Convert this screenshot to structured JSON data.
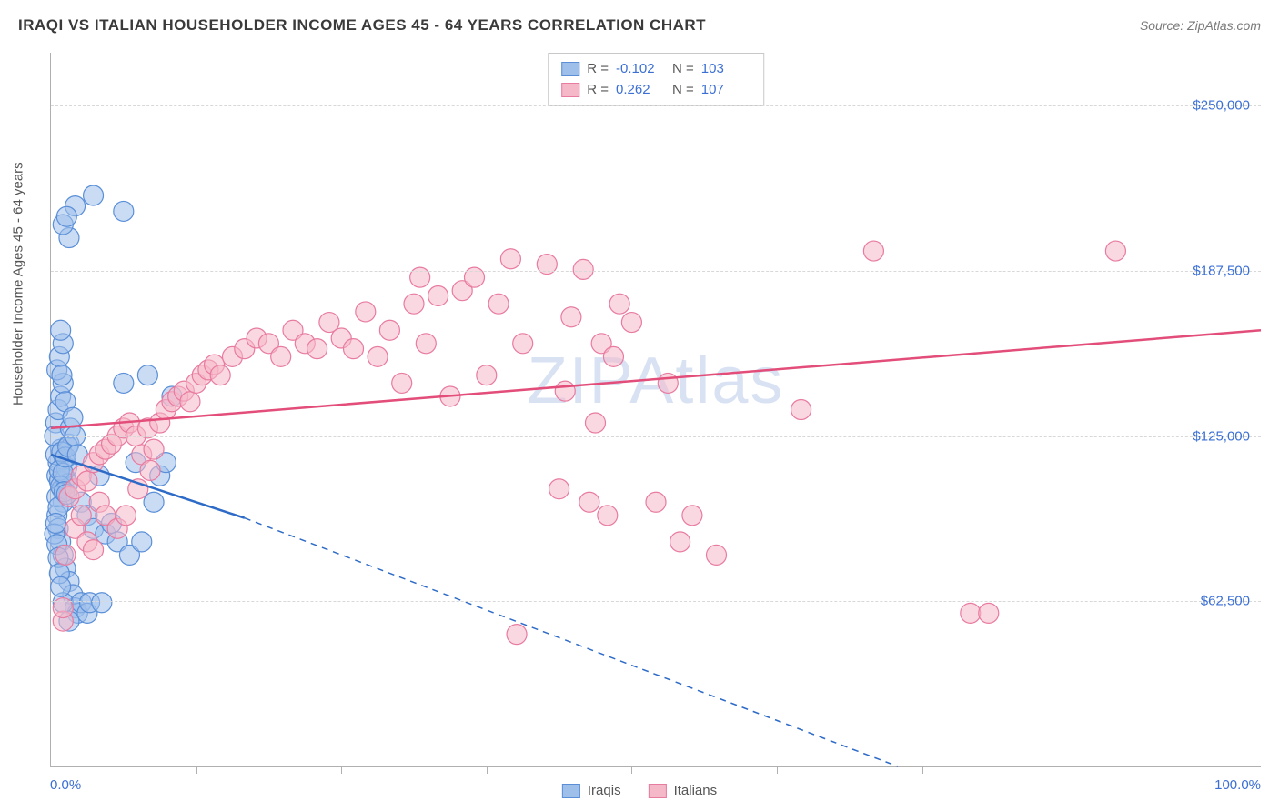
{
  "header": {
    "title": "IRAQI VS ITALIAN HOUSEHOLDER INCOME AGES 45 - 64 YEARS CORRELATION CHART",
    "source": "Source: ZipAtlas.com"
  },
  "chart": {
    "type": "scatter",
    "watermark": "ZIPAtlas",
    "background_color": "#ffffff",
    "grid_color": "#d8d8d8",
    "axis_color": "#b0b0b0",
    "text_color": "#555555",
    "accent_color": "#3b6fd4",
    "title_fontsize": 17,
    "label_fontsize": 15,
    "y_axis": {
      "label": "Householder Income Ages 45 - 64 years",
      "min": 0,
      "max": 270000,
      "ticks": [
        62500,
        125000,
        187500,
        250000
      ],
      "tick_labels": [
        "$62,500",
        "$125,000",
        "$187,500",
        "$250,000"
      ]
    },
    "x_axis": {
      "min": 0,
      "max": 100,
      "left_label": "0.0%",
      "right_label": "100.0%",
      "tick_positions": [
        12,
        24,
        36,
        48,
        60,
        72
      ]
    },
    "series": [
      {
        "name": "Iraqis",
        "color_fill": "#9fbfeb",
        "color_stroke": "#5a8fd8",
        "marker_radius": 11,
        "marker_opacity": 0.55,
        "correlation_R": "-0.102",
        "correlation_N": "103",
        "trend": {
          "x1": 0,
          "y1": 118000,
          "x2_solid": 16,
          "y2_solid": 94000,
          "x2_dash": 70,
          "y2_dash": 0,
          "color": "#2e6bc7",
          "width": 2.5
        },
        "points": [
          {
            "x": 0.5,
            "y": 110000
          },
          {
            "x": 0.6,
            "y": 115000
          },
          {
            "x": 0.7,
            "y": 108000
          },
          {
            "x": 0.8,
            "y": 120000
          },
          {
            "x": 0.9,
            "y": 105000
          },
          {
            "x": 1.0,
            "y": 100000
          },
          {
            "x": 1.1,
            "y": 116000
          },
          {
            "x": 1.2,
            "y": 109000
          },
          {
            "x": 1.3,
            "y": 113000
          },
          {
            "x": 1.4,
            "y": 107000
          },
          {
            "x": 1.5,
            "y": 122000
          },
          {
            "x": 0.5,
            "y": 95000
          },
          {
            "x": 0.6,
            "y": 90000
          },
          {
            "x": 0.8,
            "y": 85000
          },
          {
            "x": 1.0,
            "y": 80000
          },
          {
            "x": 1.2,
            "y": 75000
          },
          {
            "x": 1.5,
            "y": 70000
          },
          {
            "x": 1.8,
            "y": 65000
          },
          {
            "x": 2.0,
            "y": 60000
          },
          {
            "x": 2.2,
            "y": 58000
          },
          {
            "x": 0.4,
            "y": 130000
          },
          {
            "x": 0.6,
            "y": 135000
          },
          {
            "x": 0.8,
            "y": 140000
          },
          {
            "x": 1.0,
            "y": 145000
          },
          {
            "x": 1.2,
            "y": 138000
          },
          {
            "x": 0.5,
            "y": 150000
          },
          {
            "x": 0.7,
            "y": 155000
          },
          {
            "x": 0.9,
            "y": 148000
          },
          {
            "x": 1.5,
            "y": 200000
          },
          {
            "x": 2.0,
            "y": 212000
          },
          {
            "x": 3.5,
            "y": 216000
          },
          {
            "x": 1.0,
            "y": 205000
          },
          {
            "x": 1.3,
            "y": 208000
          },
          {
            "x": 6.0,
            "y": 210000
          },
          {
            "x": 2.5,
            "y": 100000
          },
          {
            "x": 3.0,
            "y": 95000
          },
          {
            "x": 3.5,
            "y": 90000
          },
          {
            "x": 4.0,
            "y": 110000
          },
          {
            "x": 4.5,
            "y": 88000
          },
          {
            "x": 5.0,
            "y": 92000
          },
          {
            "x": 5.5,
            "y": 85000
          },
          {
            "x": 6.0,
            "y": 145000
          },
          {
            "x": 6.5,
            "y": 80000
          },
          {
            "x": 7.0,
            "y": 115000
          },
          {
            "x": 7.5,
            "y": 85000
          },
          {
            "x": 8.0,
            "y": 148000
          },
          {
            "x": 8.5,
            "y": 100000
          },
          {
            "x": 9.0,
            "y": 110000
          },
          {
            "x": 9.5,
            "y": 115000
          },
          {
            "x": 10.0,
            "y": 140000
          },
          {
            "x": 1.0,
            "y": 62000
          },
          {
            "x": 1.5,
            "y": 55000
          },
          {
            "x": 2.5,
            "y": 62000
          },
          {
            "x": 3.0,
            "y": 58000
          },
          {
            "x": 0.3,
            "y": 125000
          },
          {
            "x": 0.4,
            "y": 118000
          },
          {
            "x": 0.5,
            "y": 102000
          },
          {
            "x": 0.6,
            "y": 98000
          },
          {
            "x": 0.7,
            "y": 112000
          },
          {
            "x": 0.8,
            "y": 106000
          },
          {
            "x": 0.9,
            "y": 119000
          },
          {
            "x": 1.0,
            "y": 111000
          },
          {
            "x": 1.1,
            "y": 104000
          },
          {
            "x": 1.2,
            "y": 117000
          },
          {
            "x": 1.3,
            "y": 103000
          },
          {
            "x": 1.4,
            "y": 121000
          },
          {
            "x": 0.3,
            "y": 88000
          },
          {
            "x": 0.4,
            "y": 92000
          },
          {
            "x": 0.5,
            "y": 84000
          },
          {
            "x": 0.6,
            "y": 79000
          },
          {
            "x": 0.7,
            "y": 73000
          },
          {
            "x": 0.8,
            "y": 68000
          },
          {
            "x": 3.2,
            "y": 62000
          },
          {
            "x": 4.2,
            "y": 62000
          },
          {
            "x": 1.6,
            "y": 128000
          },
          {
            "x": 1.8,
            "y": 132000
          },
          {
            "x": 2.0,
            "y": 125000
          },
          {
            "x": 2.2,
            "y": 118000
          },
          {
            "x": 1.0,
            "y": 160000
          },
          {
            "x": 0.8,
            "y": 165000
          }
        ]
      },
      {
        "name": "Italians",
        "color_fill": "#f5b8c8",
        "color_stroke": "#e87ba0",
        "marker_radius": 11,
        "marker_opacity": 0.55,
        "correlation_R": "0.262",
        "correlation_N": "107",
        "trend": {
          "x1": 0,
          "y1": 128000,
          "x2_solid": 100,
          "y2_solid": 165000,
          "x2_dash": 100,
          "y2_dash": 165000,
          "color": "#e34d7a",
          "width": 2.5
        },
        "points": [
          {
            "x": 1.0,
            "y": 55000
          },
          {
            "x": 1.5,
            "y": 102000
          },
          {
            "x": 2.0,
            "y": 105000
          },
          {
            "x": 2.5,
            "y": 110000
          },
          {
            "x": 3.0,
            "y": 108000
          },
          {
            "x": 3.5,
            "y": 115000
          },
          {
            "x": 4.0,
            "y": 118000
          },
          {
            "x": 4.5,
            "y": 120000
          },
          {
            "x": 5.0,
            "y": 122000
          },
          {
            "x": 5.5,
            "y": 125000
          },
          {
            "x": 6.0,
            "y": 128000
          },
          {
            "x": 6.5,
            "y": 130000
          },
          {
            "x": 7.0,
            "y": 125000
          },
          {
            "x": 7.5,
            "y": 118000
          },
          {
            "x": 8.0,
            "y": 128000
          },
          {
            "x": 8.5,
            "y": 120000
          },
          {
            "x": 9.0,
            "y": 130000
          },
          {
            "x": 9.5,
            "y": 135000
          },
          {
            "x": 10.0,
            "y": 138000
          },
          {
            "x": 10.5,
            "y": 140000
          },
          {
            "x": 11.0,
            "y": 142000
          },
          {
            "x": 11.5,
            "y": 138000
          },
          {
            "x": 12.0,
            "y": 145000
          },
          {
            "x": 12.5,
            "y": 148000
          },
          {
            "x": 13.0,
            "y": 150000
          },
          {
            "x": 13.5,
            "y": 152000
          },
          {
            "x": 14.0,
            "y": 148000
          },
          {
            "x": 15.0,
            "y": 155000
          },
          {
            "x": 16.0,
            "y": 158000
          },
          {
            "x": 17.0,
            "y": 162000
          },
          {
            "x": 18.0,
            "y": 160000
          },
          {
            "x": 19.0,
            "y": 155000
          },
          {
            "x": 20.0,
            "y": 165000
          },
          {
            "x": 21.0,
            "y": 160000
          },
          {
            "x": 22.0,
            "y": 158000
          },
          {
            "x": 23.0,
            "y": 168000
          },
          {
            "x": 24.0,
            "y": 162000
          },
          {
            "x": 25.0,
            "y": 158000
          },
          {
            "x": 26.0,
            "y": 172000
          },
          {
            "x": 27.0,
            "y": 155000
          },
          {
            "x": 28.0,
            "y": 165000
          },
          {
            "x": 29.0,
            "y": 145000
          },
          {
            "x": 30.0,
            "y": 175000
          },
          {
            "x": 31.0,
            "y": 160000
          },
          {
            "x": 32.0,
            "y": 178000
          },
          {
            "x": 33.0,
            "y": 140000
          },
          {
            "x": 30.5,
            "y": 185000
          },
          {
            "x": 34.0,
            "y": 180000
          },
          {
            "x": 35.0,
            "y": 185000
          },
          {
            "x": 36.0,
            "y": 148000
          },
          {
            "x": 37.0,
            "y": 175000
          },
          {
            "x": 38.0,
            "y": 192000
          },
          {
            "x": 39.0,
            "y": 160000
          },
          {
            "x": 41.0,
            "y": 190000
          },
          {
            "x": 42.0,
            "y": 105000
          },
          {
            "x": 43.0,
            "y": 170000
          },
          {
            "x": 44.0,
            "y": 188000
          },
          {
            "x": 45.0,
            "y": 130000
          },
          {
            "x": 42.5,
            "y": 142000
          },
          {
            "x": 44.5,
            "y": 100000
          },
          {
            "x": 46.0,
            "y": 95000
          },
          {
            "x": 47.0,
            "y": 175000
          },
          {
            "x": 48.0,
            "y": 168000
          },
          {
            "x": 38.5,
            "y": 50000
          },
          {
            "x": 45.5,
            "y": 160000
          },
          {
            "x": 46.5,
            "y": 155000
          },
          {
            "x": 50.0,
            "y": 100000
          },
          {
            "x": 51.0,
            "y": 145000
          },
          {
            "x": 52.0,
            "y": 85000
          },
          {
            "x": 53.0,
            "y": 95000
          },
          {
            "x": 55.0,
            "y": 80000
          },
          {
            "x": 62.0,
            "y": 135000
          },
          {
            "x": 68.0,
            "y": 195000
          },
          {
            "x": 76.0,
            "y": 58000
          },
          {
            "x": 77.5,
            "y": 58000
          },
          {
            "x": 88.0,
            "y": 195000
          },
          {
            "x": 2.0,
            "y": 90000
          },
          {
            "x": 2.5,
            "y": 95000
          },
          {
            "x": 3.0,
            "y": 85000
          },
          {
            "x": 3.5,
            "y": 82000
          },
          {
            "x": 4.0,
            "y": 100000
          },
          {
            "x": 4.5,
            "y": 95000
          },
          {
            "x": 5.5,
            "y": 90000
          },
          {
            "x": 6.2,
            "y": 95000
          },
          {
            "x": 7.2,
            "y": 105000
          },
          {
            "x": 8.2,
            "y": 112000
          },
          {
            "x": 1.2,
            "y": 80000
          },
          {
            "x": 1.0,
            "y": 60000
          }
        ]
      }
    ],
    "stats_legend": {
      "rows": [
        {
          "swatch_fill": "#9fbfeb",
          "swatch_stroke": "#5a8fd8",
          "r_label": "R =",
          "r_value": "-0.102",
          "n_label": "N =",
          "n_value": "103"
        },
        {
          "swatch_fill": "#f5b8c8",
          "swatch_stroke": "#e87ba0",
          "r_label": "R =",
          "r_value": "0.262",
          "n_label": "N =",
          "n_value": "107"
        }
      ]
    },
    "series_legend": {
      "items": [
        {
          "swatch_fill": "#9fbfeb",
          "swatch_stroke": "#5a8fd8",
          "label": "Iraqis"
        },
        {
          "swatch_fill": "#f5b8c8",
          "swatch_stroke": "#e87ba0",
          "label": "Italians"
        }
      ]
    }
  }
}
